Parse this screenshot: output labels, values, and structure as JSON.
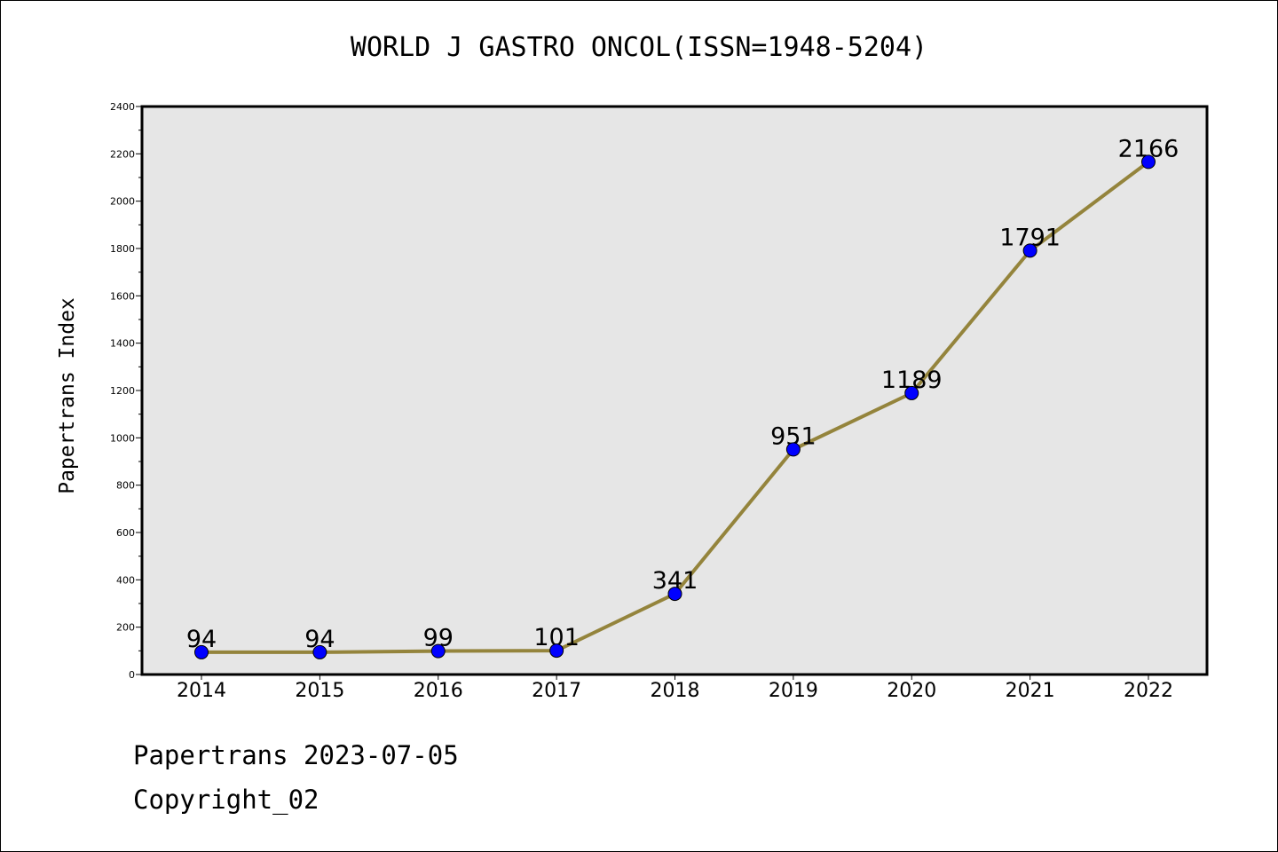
{
  "chart_data": {
    "type": "line",
    "title": "WORLD J GASTRO ONCOL(ISSN=1948-5204)",
    "xlabel": "",
    "ylabel": "Papertrans Index",
    "categories": [
      "2014",
      "2015",
      "2016",
      "2017",
      "2018",
      "2019",
      "2020",
      "2021",
      "2022"
    ],
    "values": [
      94,
      94,
      99,
      101,
      341,
      951,
      1189,
      1791,
      2166
    ],
    "ylim": [
      0,
      2400
    ],
    "yticks": [
      0,
      200,
      400,
      600,
      800,
      1000,
      1200,
      1400,
      1600,
      1800,
      2000,
      2200,
      2400
    ],
    "grid": false,
    "line_color": "#94843c",
    "marker_color": "#0000ff",
    "plot_background": "#e6e6e6"
  },
  "footer": {
    "line1": "Papertrans 2023-07-05",
    "line2": "Copyright_02"
  }
}
